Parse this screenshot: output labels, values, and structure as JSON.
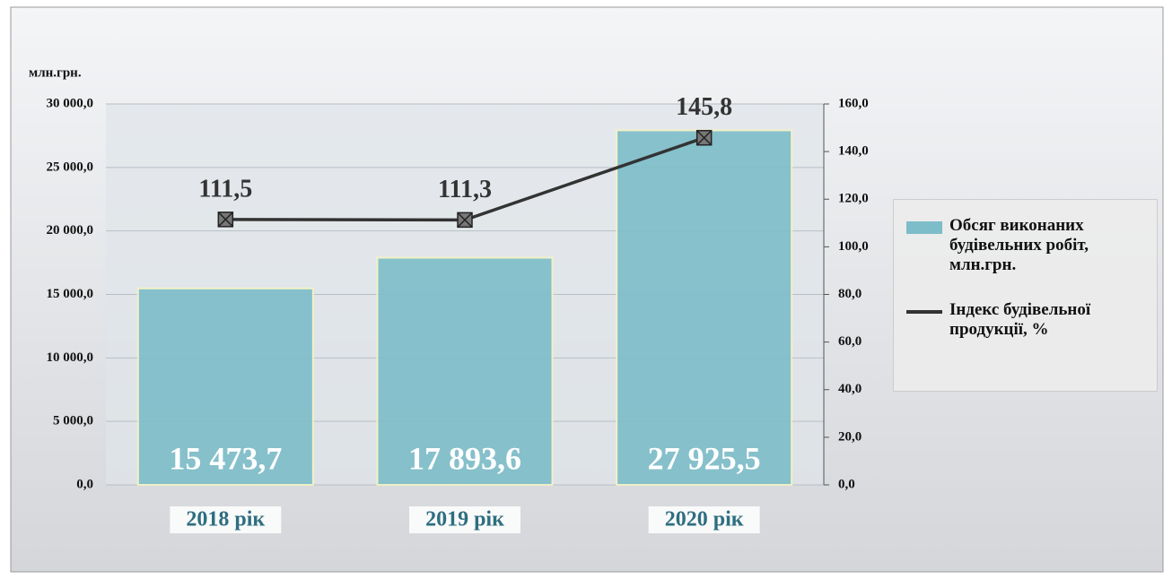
{
  "chart_data": {
    "type": "bar",
    "y_label": "млн.грн.",
    "categories": [
      "2018 рік",
      "2019 рік",
      "2020 рік"
    ],
    "series": [
      {
        "name": "Обсяг виконаних будівельних робіт, млн.грн.",
        "type": "bar",
        "color": "#7dbdc9",
        "values": [
          15473.7,
          17893.6,
          27925.5
        ],
        "value_labels": [
          "15 473,7",
          "17 893,6",
          "27 925,5"
        ]
      },
      {
        "name": "Індекс будівельної продукції, %",
        "type": "line",
        "axis": "y2",
        "color": "#333333",
        "values": [
          111.5,
          111.3,
          145.8
        ],
        "value_labels": [
          "111,5",
          "111,3",
          "145,8"
        ]
      }
    ],
    "ylim": [
      0,
      30000
    ],
    "yticks": [
      {
        "value": 0,
        "label": "0,0"
      },
      {
        "value": 5000,
        "label": "5 000,0"
      },
      {
        "value": 10000,
        "label": "10 000,0"
      },
      {
        "value": 15000,
        "label": "15 000,0"
      },
      {
        "value": 20000,
        "label": "20 000,0"
      },
      {
        "value": 25000,
        "label": "25 000,0"
      },
      {
        "value": 30000,
        "label": "30 000,0"
      }
    ],
    "y2lim": [
      0,
      160
    ],
    "y2ticks": [
      {
        "value": 0,
        "label": "0,0"
      },
      {
        "value": 20,
        "label": "20,0"
      },
      {
        "value": 40,
        "label": "40,0"
      },
      {
        "value": 60,
        "label": "60,0"
      },
      {
        "value": 80,
        "label": "80,0"
      },
      {
        "value": 100,
        "label": "100,0"
      },
      {
        "value": 120,
        "label": "120,0"
      },
      {
        "value": 140,
        "label": "140,0"
      },
      {
        "value": 160,
        "label": "160,0"
      }
    ],
    "grid": true,
    "legend": "right"
  }
}
